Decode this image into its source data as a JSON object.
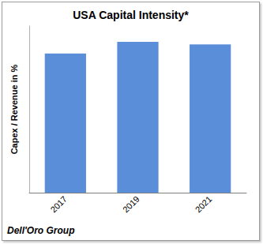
{
  "chart_data": {
    "type": "bar",
    "title": "USA Capital Intensity*",
    "y_label": "Capex / Revenue in %",
    "source": "Dell'Oro Group",
    "categories": [
      "2017",
      "2019",
      "2021"
    ],
    "values": [
      16.7,
      18.1,
      17.8
    ],
    "color": "#5a8ed8",
    "ylim": [
      0,
      20
    ],
    "grid": false,
    "tick_labels": "x"
  }
}
